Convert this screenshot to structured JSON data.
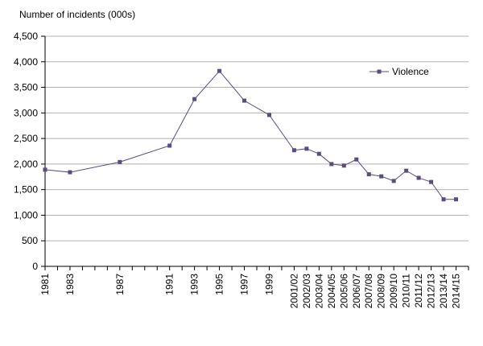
{
  "chart_data": {
    "type": "line",
    "title": "",
    "xlabel": "",
    "ylabel": "Number of incidents (000s)",
    "ylim": [
      0,
      4500
    ],
    "yticks": [
      0,
      500,
      1000,
      1500,
      2000,
      2500,
      3000,
      3500,
      4000,
      4500
    ],
    "ytick_labels": [
      "0",
      "500",
      "1,000",
      "1,500",
      "2,000",
      "2,500",
      "3,000",
      "3,500",
      "4,000",
      "4,500"
    ],
    "grid": true,
    "legend_position": "top-right",
    "x_slots_total": 34,
    "categories": [
      "1981",
      "1983",
      "1987",
      "1991",
      "1993",
      "1995",
      "1997",
      "1999",
      "2001/02",
      "2002/03",
      "2003/04",
      "2004/05",
      "2005/06",
      "2006/07",
      "2007/08",
      "2008/09",
      "2009/10",
      "2010/11",
      "2011/12",
      "2012/13",
      "2013/14",
      "2014/15"
    ],
    "x_slot_index": [
      0,
      2,
      6,
      10,
      12,
      14,
      16,
      18,
      20,
      21,
      22,
      23,
      24,
      25,
      26,
      27,
      28,
      29,
      30,
      31,
      32,
      33
    ],
    "series": [
      {
        "name": "Violence",
        "color": "#5b4b7f",
        "values": [
          1890,
          1840,
          2040,
          2360,
          3270,
          3820,
          3240,
          2960,
          2270,
          2300,
          2200,
          2000,
          1970,
          2090,
          1800,
          1760,
          1670,
          1870,
          1730,
          1650,
          1310,
          1310
        ]
      }
    ]
  }
}
